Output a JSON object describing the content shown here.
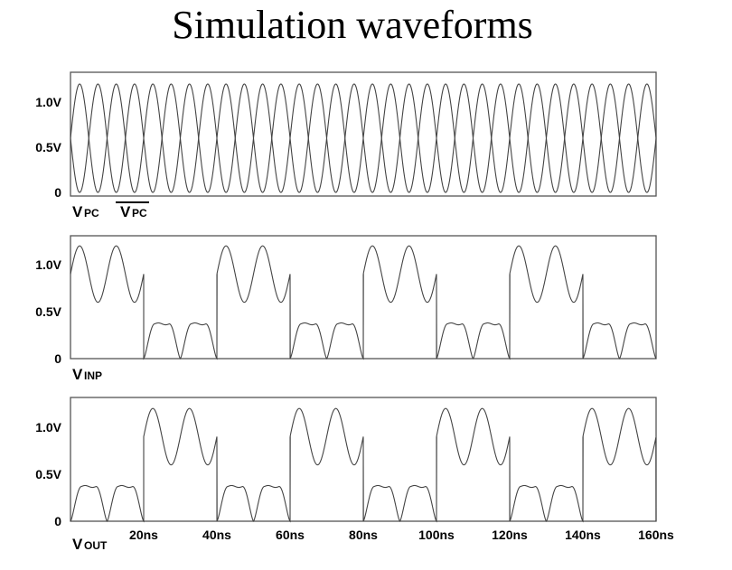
{
  "title": "Simulation waveforms",
  "colors": {
    "trace": "#444444",
    "frame": "#555555"
  },
  "chart_data": {
    "type": "line",
    "x_ticks": [
      "20ns",
      "40ns",
      "60ns",
      "80ns",
      "100ns",
      "120ns",
      "140ns",
      "160ns"
    ],
    "xlim_ns": [
      0,
      160
    ],
    "ylim_V": [
      0,
      1.3
    ],
    "grid": false,
    "panels": [
      {
        "label_main": "V",
        "label_sub": "PC",
        "label_bar_main": "V",
        "label_bar_sub": "PC",
        "y_ticks": [
          {
            "label": "1.0V",
            "value": 1.0
          },
          {
            "label": "0.5V",
            "value": 0.5
          },
          {
            "label": "0",
            "value": 0
          }
        ],
        "series": [
          {
            "waveform": "sine",
            "period_ns": 10,
            "min_V": 0.0,
            "max_V": 1.2,
            "phase": "max at 2.5ns"
          },
          {
            "waveform": "sine",
            "period_ns": 10,
            "min_V": 0.0,
            "max_V": 1.2,
            "phase": "min at 2.5ns"
          }
        ]
      },
      {
        "label_main": "V",
        "label_sub": "INP",
        "y_ticks": [
          {
            "label": "1.0V",
            "value": 1.0
          },
          {
            "label": "0.5V",
            "value": 0.5
          },
          {
            "label": "0",
            "value": 0
          }
        ],
        "series": [
          {
            "waveform": "sine-switched",
            "period_ns": 10,
            "high_segment": {
              "min_V": 0.6,
              "max_V": 1.2,
              "intervals_ns": [
                [
                  0,
                  20
                ],
                [
                  40,
                  60
                ],
                [
                  80,
                  100
                ],
                [
                  120,
                  140
                ]
              ]
            },
            "low_segment": {
              "min_V": 0.0,
              "plateau_V": 0.37,
              "intervals_ns": [
                [
                  20,
                  40
                ],
                [
                  60,
                  80
                ],
                [
                  100,
                  120
                ],
                [
                  140,
                  160
                ]
              ]
            },
            "step_ns": [
              20,
              40,
              60,
              80,
              100,
              120,
              140
            ]
          }
        ]
      },
      {
        "label_main": "V",
        "label_sub": "OUT",
        "y_ticks": [
          {
            "label": "1.0V",
            "value": 1.0
          },
          {
            "label": "0.5V",
            "value": 0.5
          },
          {
            "label": "0",
            "value": 0
          }
        ],
        "series": [
          {
            "waveform": "sine-switched",
            "period_ns": 10,
            "high_segment": {
              "min_V": 0.6,
              "max_V": 1.2,
              "intervals_ns": [
                [
                  20,
                  40
                ],
                [
                  60,
                  80
                ],
                [
                  100,
                  120
                ],
                [
                  140,
                  160
                ]
              ]
            },
            "low_segment": {
              "min_V": 0.0,
              "plateau_V": 0.37,
              "intervals_ns": [
                [
                  0,
                  20
                ],
                [
                  40,
                  60
                ],
                [
                  80,
                  100
                ],
                [
                  120,
                  140
                ]
              ]
            },
            "step_ns": [
              20,
              40,
              60,
              80,
              100,
              120,
              140
            ]
          }
        ]
      }
    ]
  }
}
